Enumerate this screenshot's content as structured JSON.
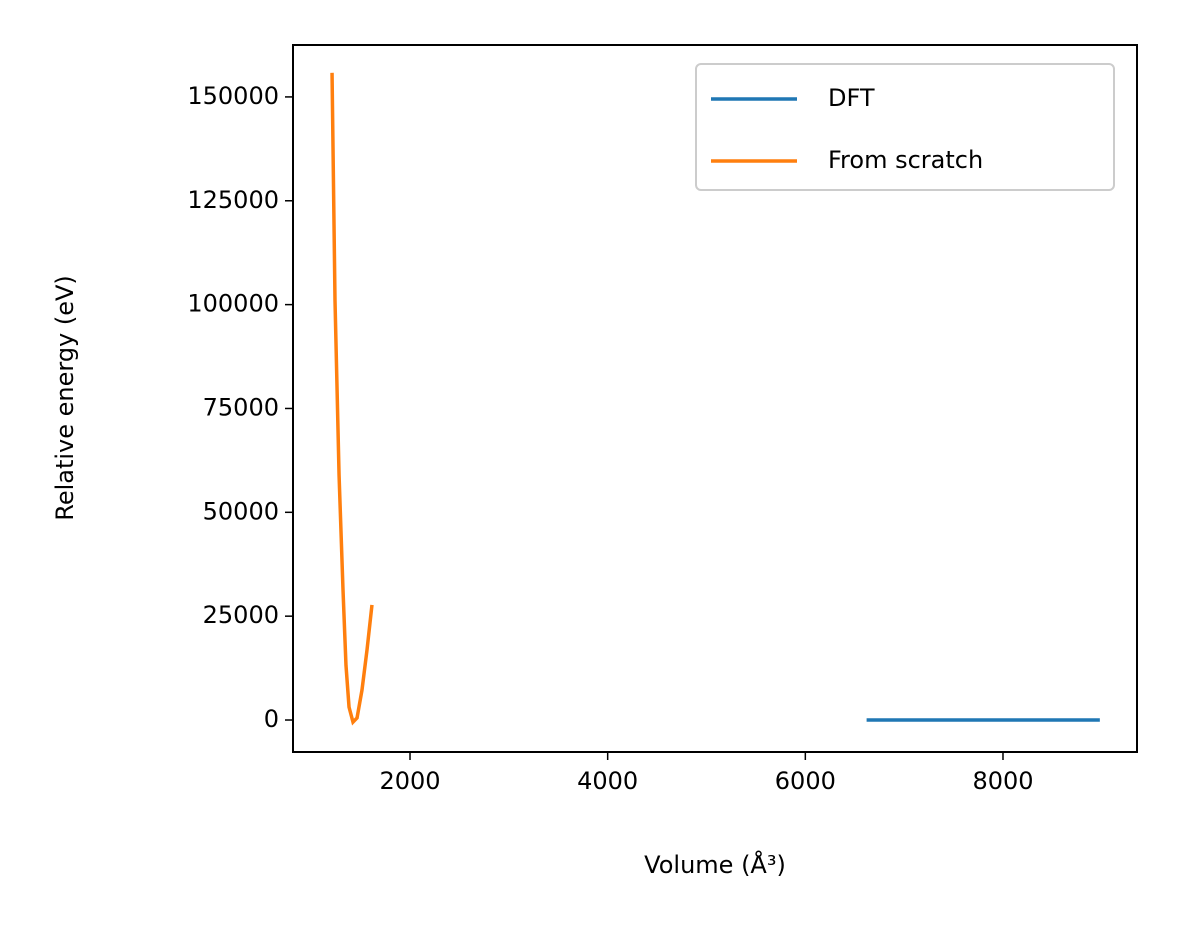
{
  "chart_data": {
    "type": "line",
    "xlabel": "Volume (Å³)",
    "ylabel": "Relative energy (eV)",
    "xlim": [
      816,
      9356
    ],
    "ylim": [
      -7700,
      162500
    ],
    "xticks": [
      2000,
      4000,
      6000,
      8000
    ],
    "yticks": [
      0,
      25000,
      50000,
      75000,
      100000,
      125000,
      150000
    ],
    "legend": "upper right",
    "series": [
      {
        "name": "DFT",
        "color": "#1f77b4",
        "x": [
          6620,
          7000,
          7500,
          8000,
          8500,
          8980
        ],
        "values": [
          0,
          0,
          0,
          0,
          0,
          0
        ]
      },
      {
        "name": "From scratch",
        "color": "#ff7f0e",
        "x": [
          1211,
          1241,
          1282,
          1322,
          1352,
          1383,
          1423,
          1464,
          1514,
          1565,
          1615
        ],
        "values": [
          155800,
          101000,
          59000,
          31300,
          13200,
          3100,
          -500,
          500,
          7200,
          16900,
          27700
        ]
      }
    ]
  }
}
